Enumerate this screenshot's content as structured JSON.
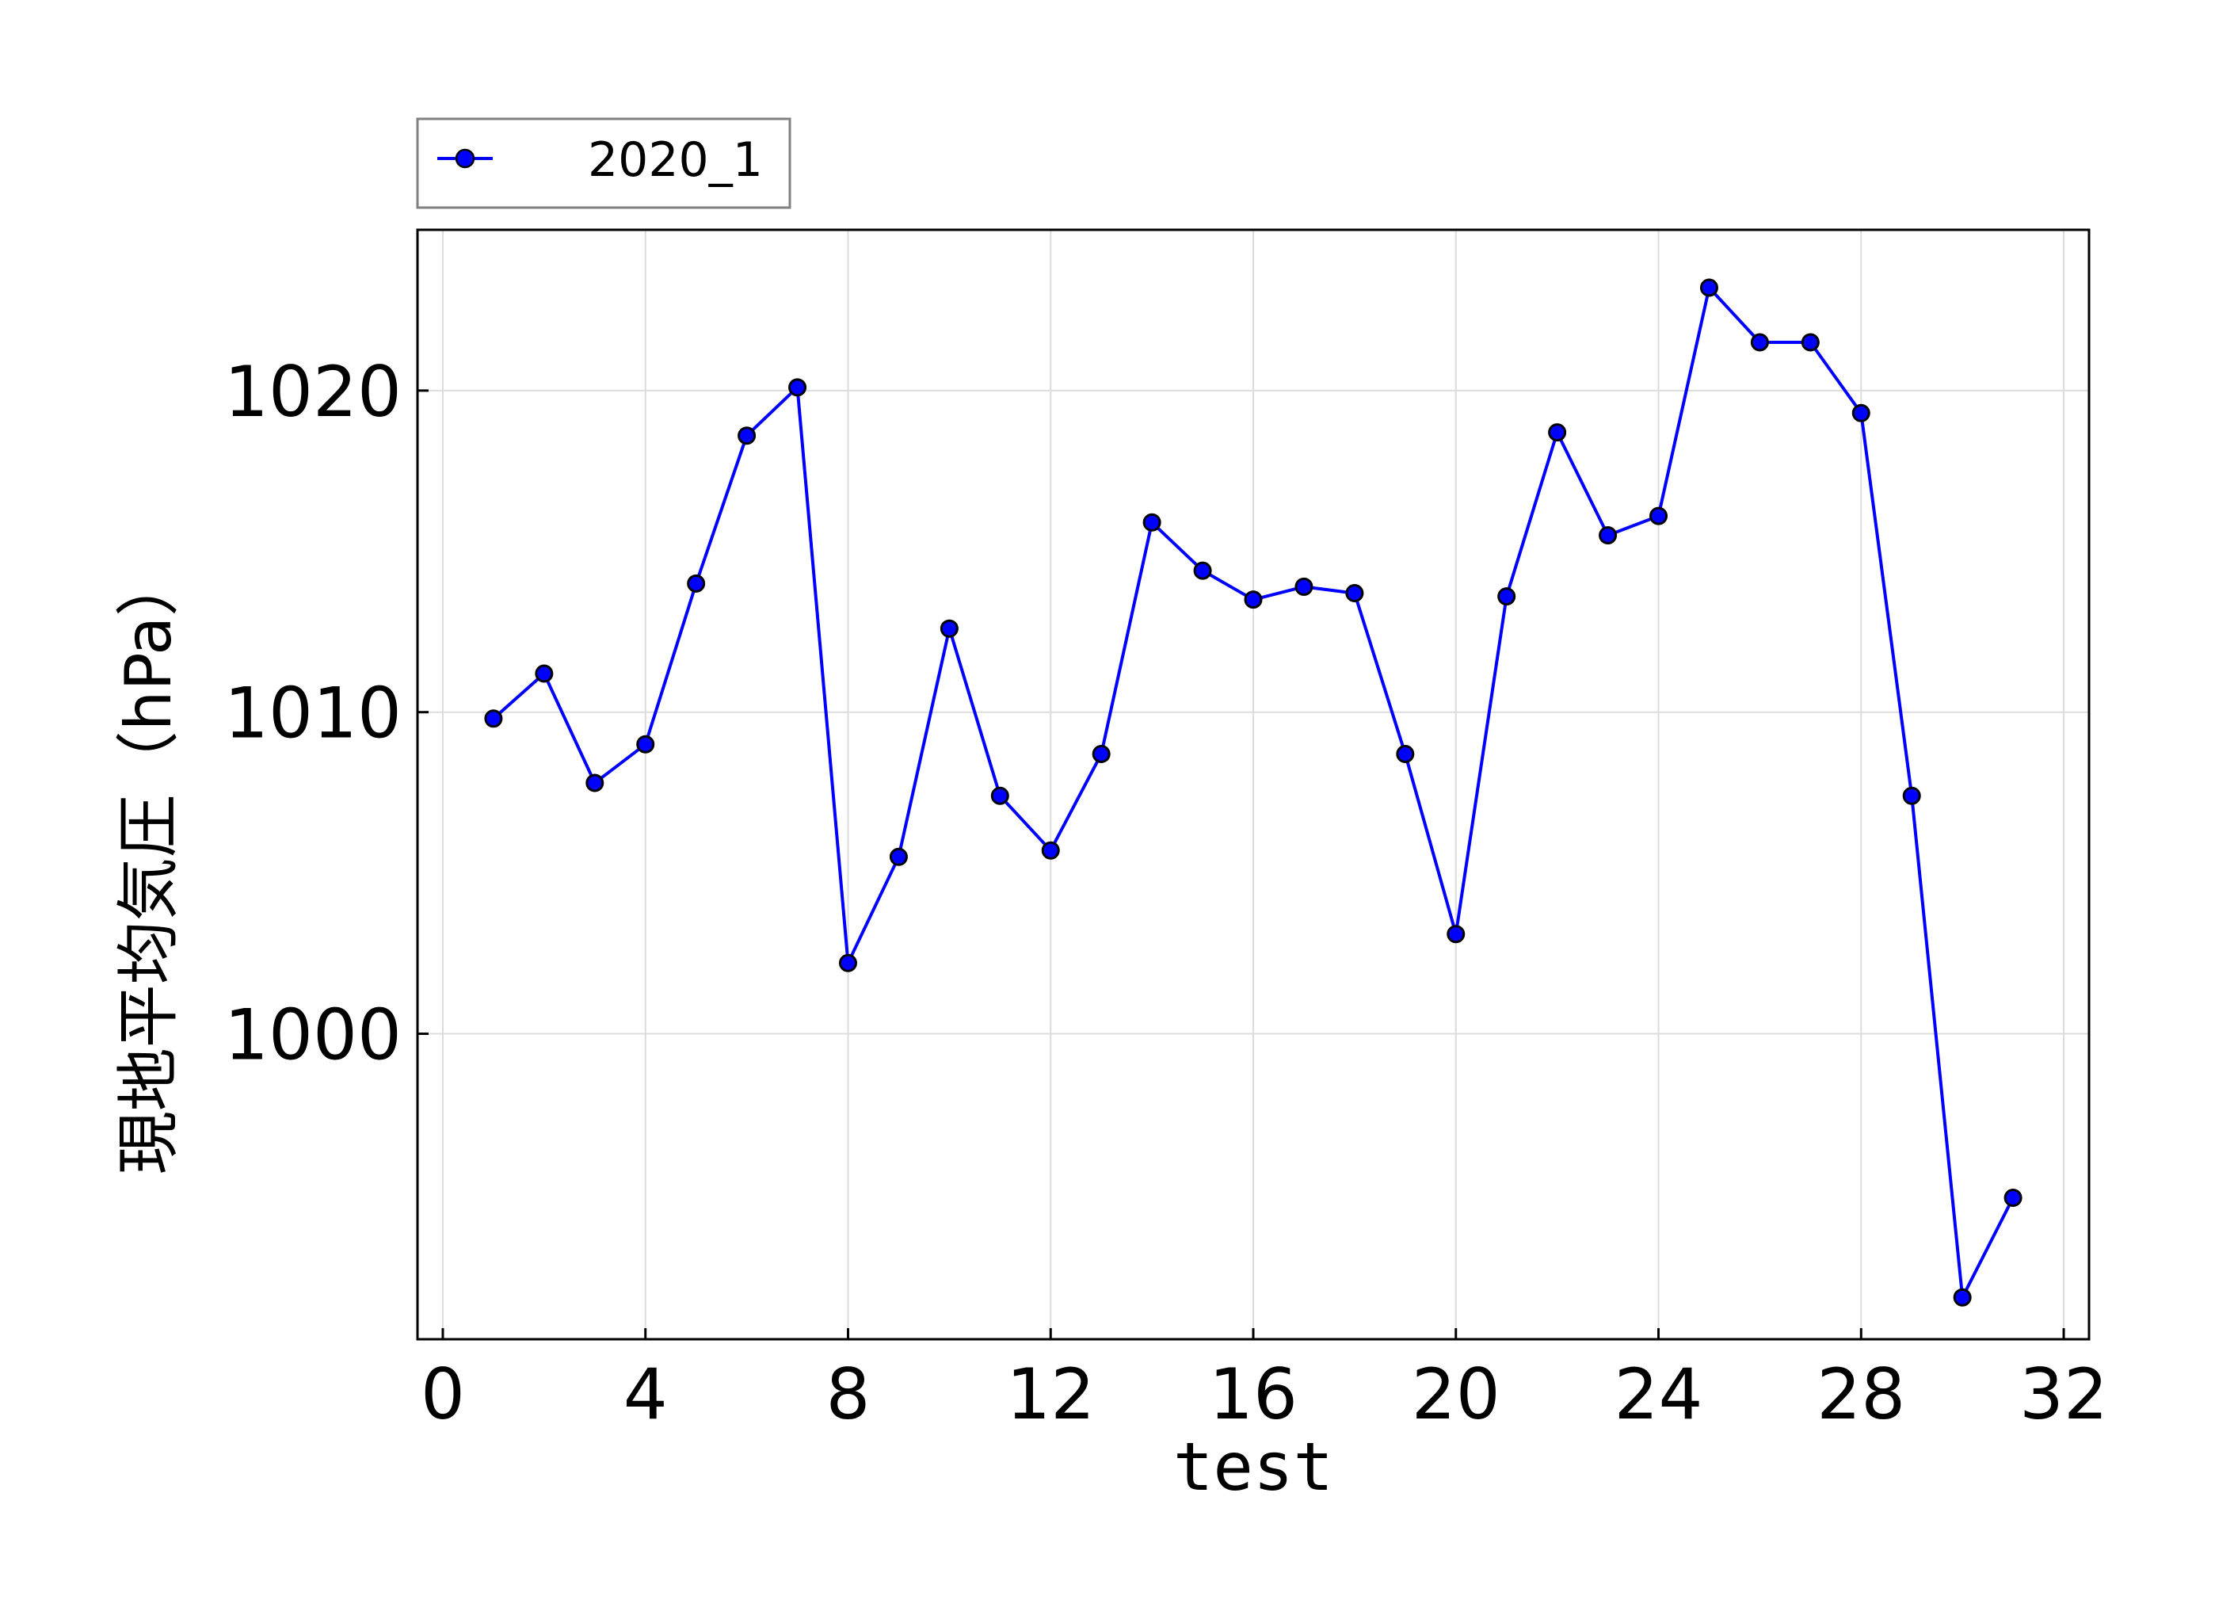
{
  "chart_data": {
    "type": "line",
    "xlabel": "test",
    "ylabel": "現地平均気圧（hPa）",
    "xlim": [
      -0.5,
      32.5
    ],
    "ylim": [
      990.5,
      1025
    ],
    "xticks": [
      0,
      4,
      8,
      12,
      16,
      20,
      24,
      28,
      32
    ],
    "yticks": [
      1000,
      1010,
      1020
    ],
    "grid": true,
    "legend_position": "top-left-outside",
    "series": [
      {
        "name": "2020_1",
        "color": "#0000ff",
        "marker_color": "#0000ff",
        "marker_edge": "#000000",
        "x": [
          1,
          2,
          3,
          4,
          5,
          6,
          7,
          8,
          9,
          10,
          11,
          12,
          13,
          14,
          15,
          16,
          17,
          18,
          19,
          20,
          21,
          22,
          23,
          24,
          25,
          26,
          27,
          28,
          29,
          30,
          31
        ],
        "y": [
          1009.8,
          1011.2,
          1007.8,
          1009.0,
          1014.0,
          1018.6,
          1020.1,
          1002.2,
          1005.5,
          1012.6,
          1007.4,
          1005.7,
          1008.7,
          1015.9,
          1014.4,
          1013.5,
          1013.9,
          1013.7,
          1008.7,
          1003.1,
          1013.6,
          1018.7,
          1015.5,
          1016.1,
          1023.2,
          1021.5,
          1021.5,
          1019.3,
          1007.4,
          991.8,
          994.9
        ]
      }
    ]
  }
}
